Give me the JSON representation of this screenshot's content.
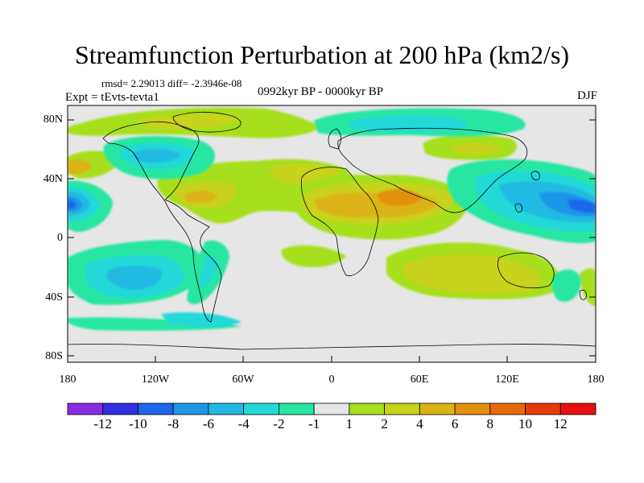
{
  "title": "Streamfunction Perturbation at 200 hPa (km2/s)",
  "stats_line": "rmsd= 2.29013 diff= -2.3946e-08",
  "experiment": "Expt = tEvts-tevta1",
  "period": "0992kyr BP - 0000kyr BP",
  "season": "DJF",
  "map": {
    "projection": "cylindrical equidistant",
    "lon_range": [
      -180,
      180
    ],
    "lat_range": [
      -90,
      90
    ],
    "y_tick_labels": [
      "80N",
      "40N",
      "0",
      "40S",
      "80S"
    ],
    "x_tick_labels": [
      "180",
      "120W",
      "60W",
      "0",
      "60E",
      "120E",
      "180"
    ]
  },
  "colorbar": {
    "labels": [
      "-12",
      "-10",
      "-8",
      "-6",
      "-4",
      "-2",
      "-1",
      "1",
      "2",
      "4",
      "6",
      "8",
      "10",
      "12"
    ],
    "colors": [
      "#8a2be2",
      "#3030dd",
      "#1c66ea",
      "#1e96e6",
      "#21b9e2",
      "#22d8d8",
      "#26e6a2",
      "#e6e6e6",
      "#a6e01e",
      "#c9d21a",
      "#dcb312",
      "#e3900d",
      "#e66a0a",
      "#e63a0a",
      "#e61010"
    ]
  },
  "chart_data": {
    "type": "heatmap",
    "title": "Streamfunction Perturbation at 200 hPa (km2/s)",
    "units": "km2/s",
    "levels": [
      -12,
      -10,
      -8,
      -6,
      -4,
      -2,
      -1,
      1,
      2,
      4,
      6,
      8,
      10,
      12
    ],
    "anomalies": [
      {
        "region": "Central Pacific, ~15N",
        "lon": -175,
        "lat": 15,
        "value": -9
      },
      {
        "region": "NE Pacific / Alaska",
        "lon": -135,
        "lat": 52,
        "value": -5
      },
      {
        "region": "North Pacific, ~45N",
        "lon": -170,
        "lat": 45,
        "value": 4
      },
      {
        "region": "Gulf of Mexico / Caribbean",
        "lon": -85,
        "lat": 22,
        "value": 4
      },
      {
        "region": "Arctic / Greenland",
        "lon": -40,
        "lat": 75,
        "value": 2
      },
      {
        "region": "Central Atlantic",
        "lon": -30,
        "lat": 35,
        "value": 3
      },
      {
        "region": "North Africa / Arabia",
        "lon": 35,
        "lat": 20,
        "value": 5
      },
      {
        "region": "Siberia",
        "lon": 60,
        "lat": 73,
        "value": -2
      },
      {
        "region": "Central Asia",
        "lon": 85,
        "lat": 50,
        "value": 2
      },
      {
        "region": "East Asia / W Pacific",
        "lon": 125,
        "lat": 25,
        "value": -5
      },
      {
        "region": "W Pacific, ~15N",
        "lon": 175,
        "lat": 15,
        "value": -9
      },
      {
        "region": "South Pacific, ~30S",
        "lon": -120,
        "lat": -30,
        "value": -3
      },
      {
        "region": "South Atlantic",
        "lon": -10,
        "lat": -25,
        "value": 2
      },
      {
        "region": "Southern Indian Ocean",
        "lon": 70,
        "lat": -30,
        "value": 3
      },
      {
        "region": "Australia / SW Pacific",
        "lon": 135,
        "lat": -25,
        "value": 3
      }
    ]
  }
}
